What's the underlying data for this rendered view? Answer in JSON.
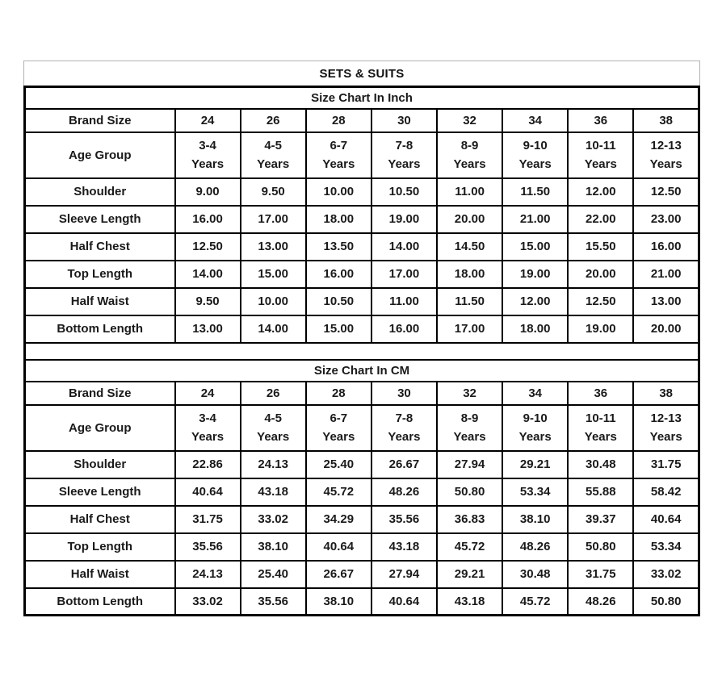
{
  "title": "SETS & SUITS",
  "colors": {
    "heavy_border": "#000000",
    "light_border": "#b2b2b2",
    "text": "#1a1a1a",
    "background": "#ffffff"
  },
  "sections": [
    {
      "title": "Size Chart In Inch",
      "brand_size_label": "Brand Size",
      "age_group_label": "Age Group",
      "age_years_label": "Years",
      "brand_sizes": [
        "24",
        "26",
        "28",
        "30",
        "32",
        "34",
        "36",
        "38"
      ],
      "age_groups": [
        "3-4",
        "4-5",
        "6-7",
        "7-8",
        "8-9",
        "9-10",
        "10-11",
        "12-13"
      ],
      "rows": [
        {
          "label": "Shoulder",
          "values": [
            "9.00",
            "9.50",
            "10.00",
            "10.50",
            "11.00",
            "11.50",
            "12.00",
            "12.50"
          ]
        },
        {
          "label": "Sleeve Length",
          "values": [
            "16.00",
            "17.00",
            "18.00",
            "19.00",
            "20.00",
            "21.00",
            "22.00",
            "23.00"
          ]
        },
        {
          "label": "Half Chest",
          "values": [
            "12.50",
            "13.00",
            "13.50",
            "14.00",
            "14.50",
            "15.00",
            "15.50",
            "16.00"
          ]
        },
        {
          "label": "Top Length",
          "values": [
            "14.00",
            "15.00",
            "16.00",
            "17.00",
            "18.00",
            "19.00",
            "20.00",
            "21.00"
          ]
        },
        {
          "label": "Half Waist",
          "values": [
            "9.50",
            "10.00",
            "10.50",
            "11.00",
            "11.50",
            "12.00",
            "12.50",
            "13.00"
          ]
        },
        {
          "label": "Bottom Length",
          "values": [
            "13.00",
            "14.00",
            "15.00",
            "16.00",
            "17.00",
            "18.00",
            "19.00",
            "20.00"
          ]
        }
      ]
    },
    {
      "title": "Size Chart In CM",
      "brand_size_label": "Brand Size",
      "age_group_label": "Age Group",
      "age_years_label": "Years",
      "brand_sizes": [
        "24",
        "26",
        "28",
        "30",
        "32",
        "34",
        "36",
        "38"
      ],
      "age_groups": [
        "3-4",
        "4-5",
        "6-7",
        "7-8",
        "8-9",
        "9-10",
        "10-11",
        "12-13"
      ],
      "rows": [
        {
          "label": "Shoulder",
          "values": [
            "22.86",
            "24.13",
            "25.40",
            "26.67",
            "27.94",
            "29.21",
            "30.48",
            "31.75"
          ]
        },
        {
          "label": "Sleeve Length",
          "values": [
            "40.64",
            "43.18",
            "45.72",
            "48.26",
            "50.80",
            "53.34",
            "55.88",
            "58.42"
          ]
        },
        {
          "label": "Half Chest",
          "values": [
            "31.75",
            "33.02",
            "34.29",
            "35.56",
            "36.83",
            "38.10",
            "39.37",
            "40.64"
          ]
        },
        {
          "label": "Top Length",
          "values": [
            "35.56",
            "38.10",
            "40.64",
            "43.18",
            "45.72",
            "48.26",
            "50.80",
            "53.34"
          ]
        },
        {
          "label": "Half Waist",
          "values": [
            "24.13",
            "25.40",
            "26.67",
            "27.94",
            "29.21",
            "30.48",
            "31.75",
            "33.02"
          ]
        },
        {
          "label": "Bottom Length",
          "values": [
            "33.02",
            "35.56",
            "38.10",
            "40.64",
            "43.18",
            "45.72",
            "48.26",
            "50.80"
          ]
        }
      ]
    }
  ]
}
